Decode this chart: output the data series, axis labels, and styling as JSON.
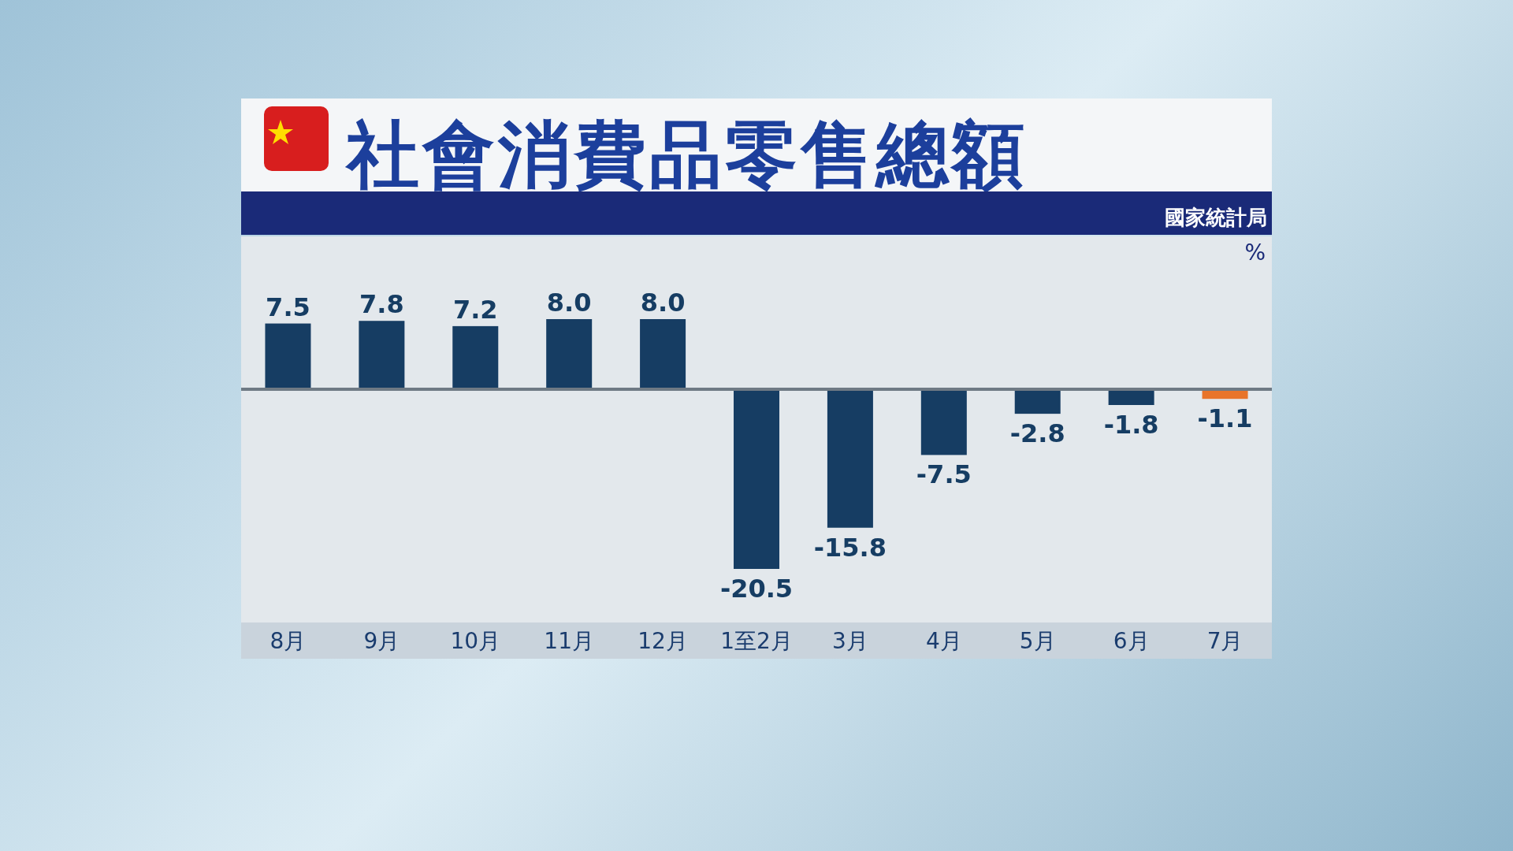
{
  "chart_data": {
    "type": "bar",
    "title": "社會消費品零售總額",
    "subtitle": "國家統計局",
    "ylabel": "%",
    "categories": [
      "8月",
      "9月",
      "10月",
      "11月",
      "12月",
      "1至2月",
      "3月",
      "4月",
      "5月",
      "6月",
      "7月"
    ],
    "values": [
      7.5,
      7.8,
      7.2,
      8.0,
      8.0,
      -20.5,
      -15.8,
      -7.5,
      -2.8,
      -1.8,
      -1.1
    ],
    "value_labels": [
      "7.5",
      "7.8",
      "7.2",
      "8.0",
      "8.0",
      "-20.5",
      "-15.8",
      "-7.5",
      "-2.8",
      "-1.8",
      "-1.1"
    ],
    "colors": [
      "#163d63",
      "#163d63",
      "#163d63",
      "#163d63",
      "#163d63",
      "#163d63",
      "#163d63",
      "#163d63",
      "#163d63",
      "#163d63",
      "#e8742a"
    ]
  }
}
